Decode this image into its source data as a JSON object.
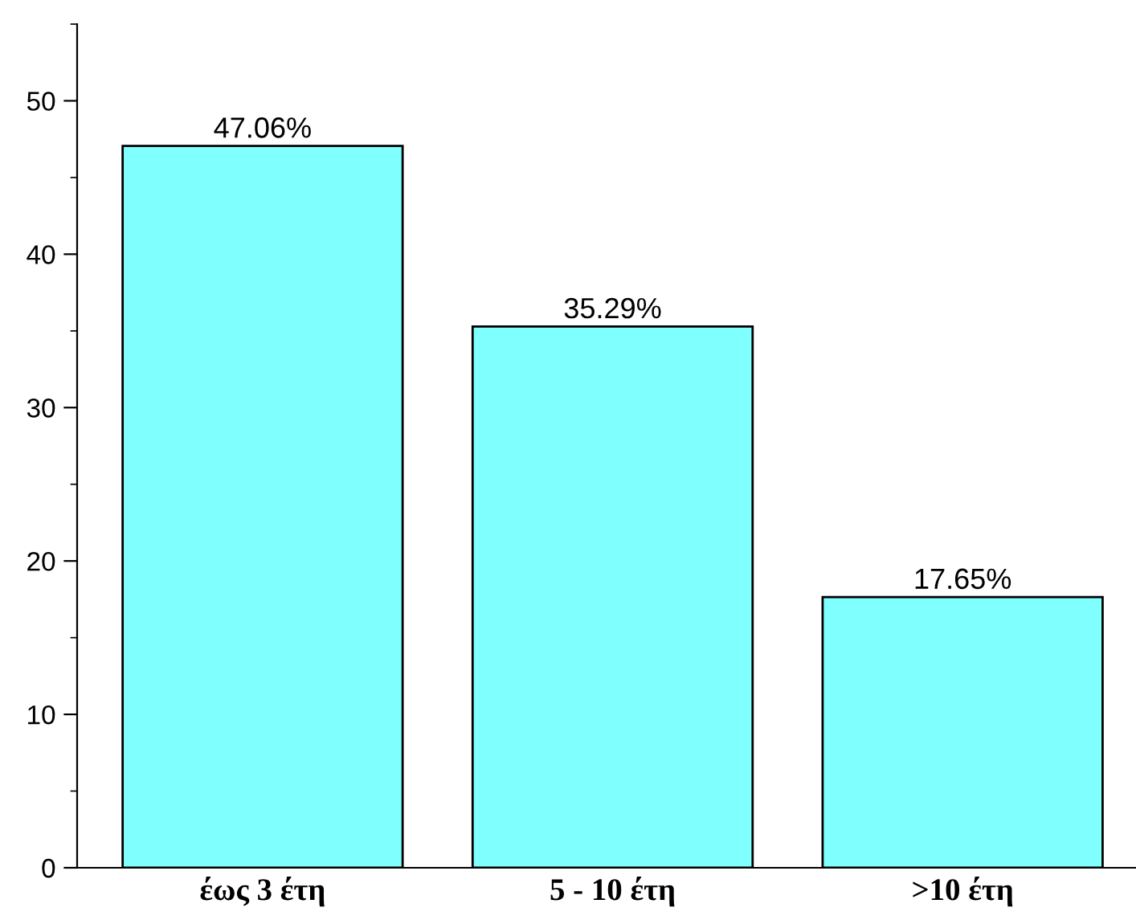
{
  "chart_data": {
    "type": "bar",
    "categories": [
      "έως 3 έτη",
      "5 - 10 έτη",
      ">10 έτη"
    ],
    "values": [
      47.06,
      35.29,
      17.65
    ],
    "value_labels": [
      "47.06%",
      "35.29%",
      "17.65%"
    ],
    "color": "#80ffff",
    "ylim": [
      0,
      55
    ],
    "yticks": [
      0,
      10,
      20,
      30,
      40,
      50
    ],
    "grid": false,
    "legend": false
  }
}
